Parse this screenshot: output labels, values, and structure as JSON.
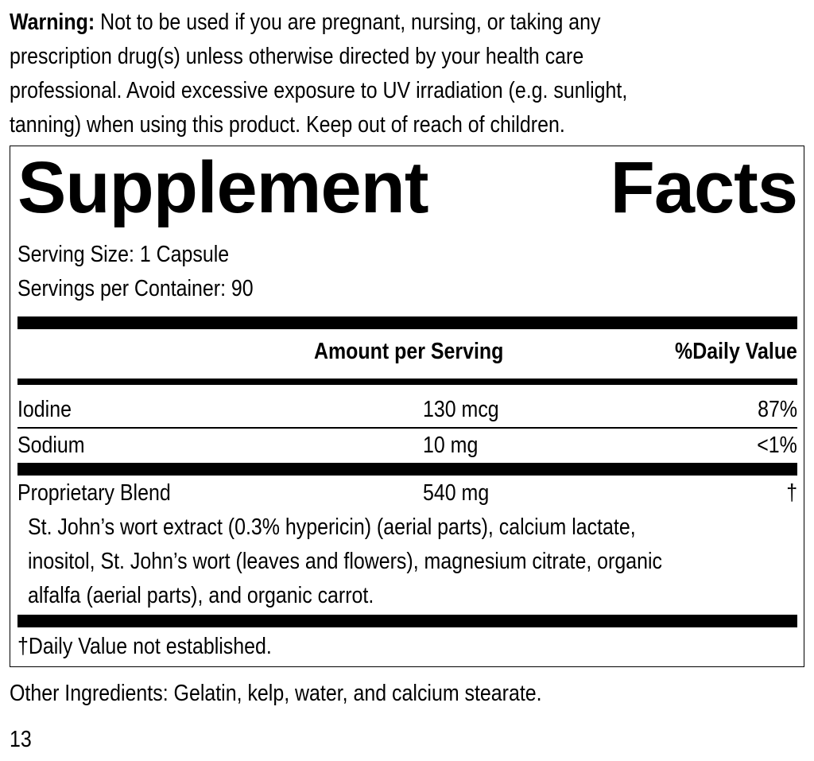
{
  "warning": {
    "label": "Warning:",
    "lines": [
      "Not to be used if you are pregnant, nursing, or taking any",
      "prescription drug(s) unless otherwise directed by your health care",
      "professional. Avoid excessive exposure to UV irradiation (e.g. sunlight,",
      "tanning) when using this product. Keep out of reach of children."
    ]
  },
  "facts": {
    "title_word1": "Supplement",
    "title_word2": "Facts",
    "serving_size": "Serving Size: 1 Capsule",
    "servings_per_container": "Servings per Container: 90",
    "header": {
      "amount": "Amount per Serving",
      "dv": "%Daily Value"
    },
    "rows": [
      {
        "name": "Iodine",
        "amount": "130 mcg",
        "dv": "87%"
      },
      {
        "name": "Sodium",
        "amount": "10 mg",
        "dv": "<1%"
      },
      {
        "name": "Proprietary Blend",
        "amount": "540 mg",
        "dv": "†"
      }
    ],
    "blend_lines": [
      "St. John’s wort extract (0.3% hypericin) (aerial parts), calcium lactate,",
      "inositol, St. John’s wort (leaves and flowers), magnesium citrate, organic",
      "alfalfa (aerial parts), and organic carrot."
    ],
    "footnote": "†Daily Value not established."
  },
  "other_ingredients": "Other Ingredients: Gelatin, kelp, water, and calcium stearate.",
  "page_number": "13"
}
